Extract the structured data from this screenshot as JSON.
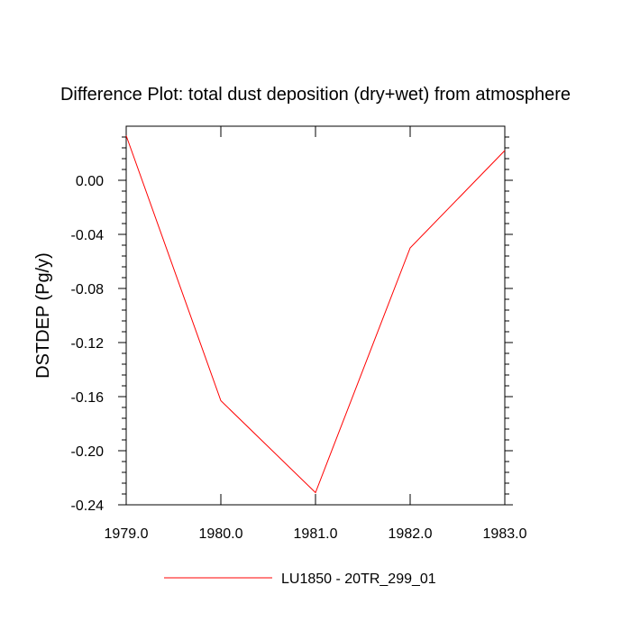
{
  "chart_data": {
    "type": "line",
    "title": "Difference Plot: total dust deposition (dry+wet) from atmosphere",
    "xlabel": "",
    "ylabel": "DSTDEP  (Pg/y)",
    "x": [
      1979.0,
      1980.0,
      1981.0,
      1982.0,
      1983.0
    ],
    "xticks": [
      "1979.0",
      "1980.0",
      "1981.0",
      "1982.0",
      "1983.0"
    ],
    "yticks": [
      "0.00",
      "-0.04",
      "-0.08",
      "-0.12",
      "-0.16",
      "-0.20",
      "-0.24"
    ],
    "ylim": [
      -0.24,
      0.04
    ],
    "xlim": [
      1979.0,
      1983.0
    ],
    "grid": false,
    "legend_position": "bottom-center",
    "series": [
      {
        "name": "LU1850 - 20TR_299_01",
        "color": "#ff0000",
        "values": [
          0.033,
          -0.163,
          -0.231,
          -0.05,
          0.022
        ]
      }
    ]
  }
}
